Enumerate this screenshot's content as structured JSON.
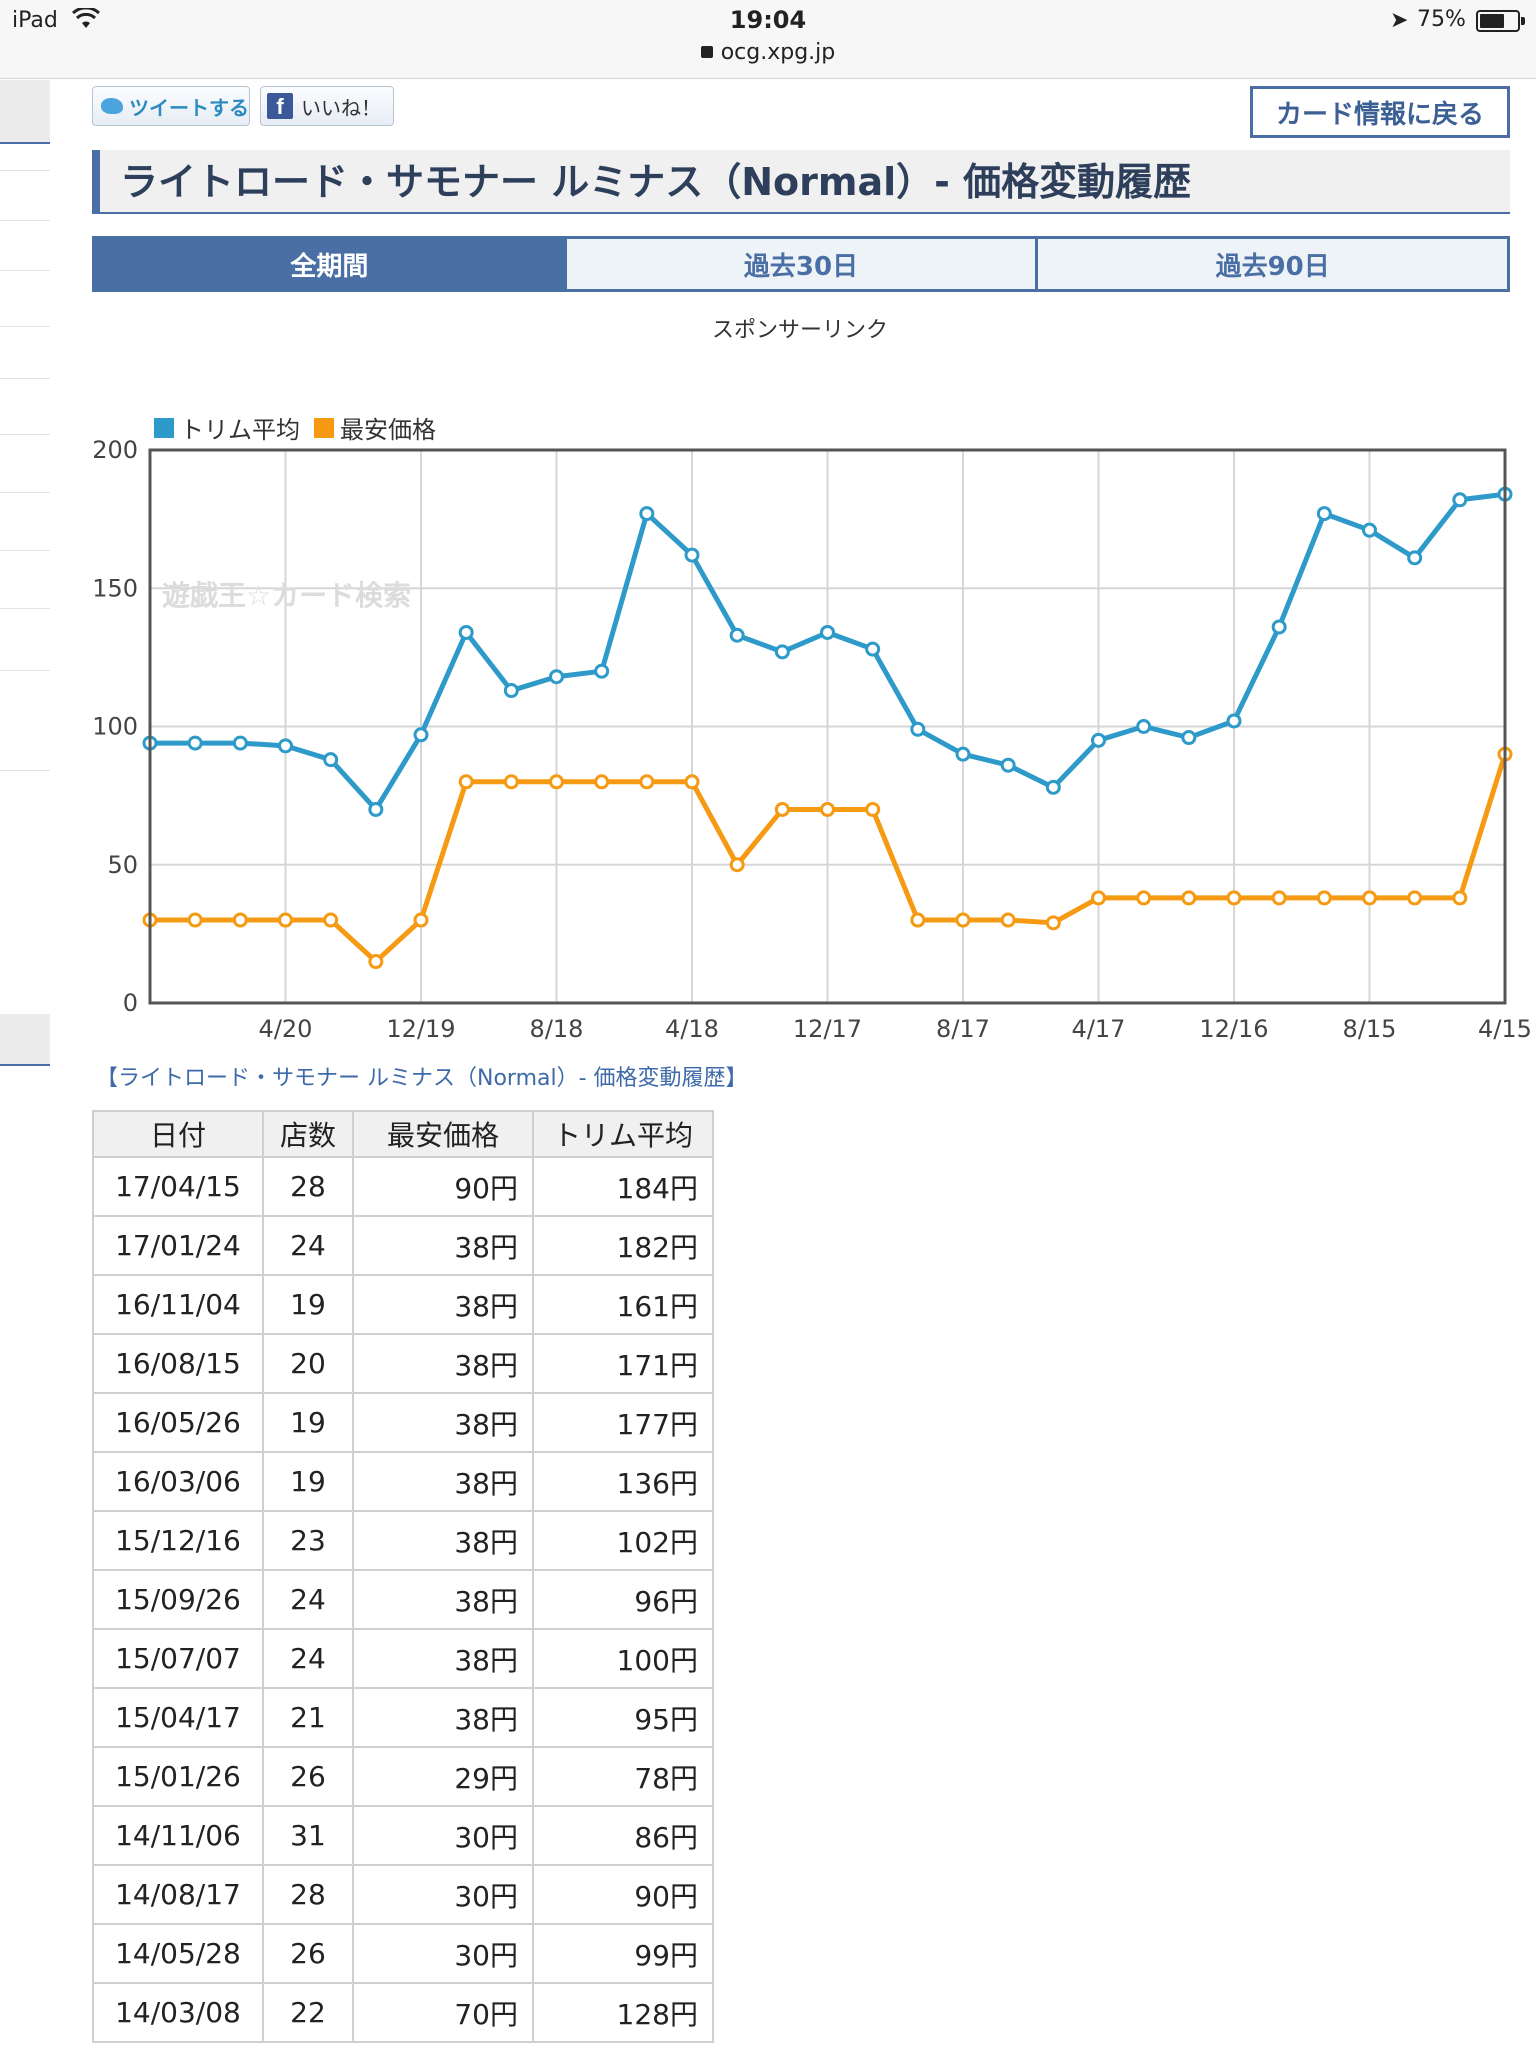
{
  "status_bar": {
    "device": "iPad",
    "time": "19:04",
    "url": "ocg.xpg.jp",
    "battery": "75%",
    "battery_level": 0.75,
    "icons": [
      "wifi-icon",
      "lock-icon",
      "location-icon",
      "battery-icon"
    ]
  },
  "social": {
    "tweet_label": "ツイートする",
    "like_label": "いいね！"
  },
  "back_button": "カード情報に戻る",
  "page_title": "ライトロード・サモナー ルミナス（Normal）- 価格変動履歴",
  "tabs": [
    "全期間",
    "過去30日",
    "過去90日"
  ],
  "active_tab": "全期間",
  "sponsor_text": "スポンサーリンク",
  "history_link": "【ライトロード・サモナー ルミナス（Normal）- 価格変動履歴】",
  "chart_data": {
    "type": "line",
    "x_ticks": [
      "4/20",
      "12/19",
      "8/18",
      "4/18",
      "12/17",
      "8/17",
      "4/17",
      "12/16",
      "8/15",
      "4/15"
    ],
    "y_ticks": [
      0,
      50,
      100,
      150,
      200
    ],
    "ylim": [
      0,
      200
    ],
    "watermark": "遊戯王☆カード検索",
    "legend_position": "top-left",
    "grid": true,
    "series": [
      {
        "name": "トリム平均",
        "color": "#2e9ac9",
        "values": [
          94,
          94,
          94,
          93,
          88,
          70,
          97,
          134,
          113,
          118,
          120,
          177,
          162,
          133,
          127,
          134,
          128,
          99,
          90,
          86,
          78,
          95,
          100,
          96,
          102,
          136,
          177,
          171,
          161,
          182,
          184
        ]
      },
      {
        "name": "最安価格",
        "color": "#f59a12",
        "values": [
          30,
          30,
          30,
          30,
          30,
          15,
          30,
          80,
          80,
          80,
          80,
          80,
          80,
          50,
          70,
          70,
          70,
          30,
          30,
          30,
          29,
          38,
          38,
          38,
          38,
          38,
          38,
          38,
          38,
          38,
          90
        ]
      }
    ]
  },
  "table": {
    "headers": [
      "日付",
      "店数",
      "最安価格",
      "トリム平均"
    ],
    "rows": [
      [
        "17/04/15",
        "28",
        "90円",
        "184円"
      ],
      [
        "17/01/24",
        "24",
        "38円",
        "182円"
      ],
      [
        "16/11/04",
        "19",
        "38円",
        "161円"
      ],
      [
        "16/08/15",
        "20",
        "38円",
        "171円"
      ],
      [
        "16/05/26",
        "19",
        "38円",
        "177円"
      ],
      [
        "16/03/06",
        "19",
        "38円",
        "136円"
      ],
      [
        "15/12/16",
        "23",
        "38円",
        "102円"
      ],
      [
        "15/09/26",
        "24",
        "38円",
        "96円"
      ],
      [
        "15/07/07",
        "24",
        "38円",
        "100円"
      ],
      [
        "15/04/17",
        "21",
        "38円",
        "95円"
      ],
      [
        "15/01/26",
        "26",
        "29円",
        "78円"
      ],
      [
        "14/11/06",
        "31",
        "30円",
        "86円"
      ],
      [
        "14/08/17",
        "28",
        "30円",
        "90円"
      ],
      [
        "14/05/28",
        "26",
        "30円",
        "99円"
      ],
      [
        "14/03/08",
        "22",
        "70円",
        "128円"
      ]
    ]
  }
}
